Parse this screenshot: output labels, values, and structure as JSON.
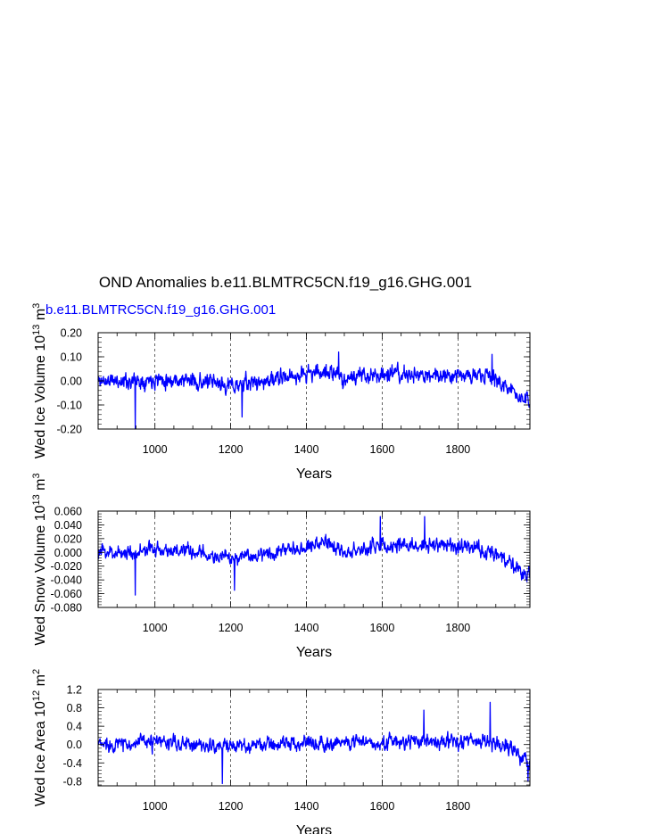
{
  "title": "OND Anomalies b.e11.BLMTRC5CN.f19_g16.GHG.001",
  "legend_label": "b.e11.BLMTRC5CN.f19_g16.GHG.001",
  "series_color": "#0000ff",
  "chart_data": [
    {
      "type": "line",
      "ylabel": "Wed Ice Volume 10^13 m^3",
      "xlabel": "Years",
      "xlim": [
        850,
        1990
      ],
      "ylim": [
        -0.2,
        0.2
      ],
      "xticks": [
        1000,
        1200,
        1400,
        1600,
        1800
      ],
      "xtick_labels": [
        "1000",
        "1200",
        "1400",
        "1600",
        "1800"
      ],
      "yticks": [
        -0.2,
        -0.1,
        0.0,
        0.1,
        0.2
      ],
      "ytick_labels": [
        "-0.20",
        "-0.10",
        "0.00",
        "0.10",
        "0.20"
      ],
      "amplitude": 0.045,
      "seed": 11,
      "profile": [
        [
          850,
          0.0
        ],
        [
          950,
          0.0
        ],
        [
          1000,
          0.01
        ],
        [
          1100,
          0.0
        ],
        [
          1200,
          -0.02
        ],
        [
          1300,
          0.0
        ],
        [
          1400,
          0.03
        ],
        [
          1450,
          0.04
        ],
        [
          1500,
          0.01
        ],
        [
          1600,
          0.03
        ],
        [
          1700,
          0.02
        ],
        [
          1800,
          0.03
        ],
        [
          1900,
          0.01
        ],
        [
          1930,
          -0.03
        ],
        [
          1990,
          -0.09
        ]
      ],
      "spikes": [
        [
          948,
          -0.2
        ],
        [
          1230,
          -0.15
        ],
        [
          1485,
          0.12
        ],
        [
          1890,
          0.11
        ]
      ],
      "series": [
        {
          "name": "b.e11.BLMTRC5CN.f19_g16.GHG.001",
          "color": "#0000ff"
        }
      ]
    },
    {
      "type": "line",
      "ylabel": "Wed Snow Volume 10^13 m^3",
      "xlabel": "Years",
      "xlim": [
        850,
        1990
      ],
      "ylim": [
        -0.08,
        0.06
      ],
      "xticks": [
        1000,
        1200,
        1400,
        1600,
        1800
      ],
      "xtick_labels": [
        "1000",
        "1200",
        "1400",
        "1600",
        "1800"
      ],
      "yticks": [
        -0.08,
        -0.06,
        -0.04,
        -0.02,
        0.0,
        0.02,
        0.04,
        0.06
      ],
      "ytick_labels": [
        "-0.080",
        "-0.060",
        "-0.040",
        "-0.020",
        "0.000",
        "0.020",
        "0.040",
        "0.060"
      ],
      "amplitude": 0.014,
      "seed": 23,
      "profile": [
        [
          850,
          0.0
        ],
        [
          950,
          0.0
        ],
        [
          1000,
          0.005
        ],
        [
          1100,
          0.0
        ],
        [
          1200,
          -0.01
        ],
        [
          1300,
          0.0
        ],
        [
          1400,
          0.01
        ],
        [
          1450,
          0.015
        ],
        [
          1500,
          0.0
        ],
        [
          1600,
          0.01
        ],
        [
          1700,
          0.01
        ],
        [
          1800,
          0.01
        ],
        [
          1900,
          0.0
        ],
        [
          1930,
          -0.015
        ],
        [
          1990,
          -0.035
        ]
      ],
      "spikes": [
        [
          948,
          -0.062
        ],
        [
          1210,
          -0.055
        ],
        [
          1595,
          0.052
        ],
        [
          1712,
          0.052
        ]
      ],
      "series": [
        {
          "name": "b.e11.BLMTRC5CN.f19_g16.GHG.001",
          "color": "#0000ff"
        }
      ]
    },
    {
      "type": "line",
      "ylabel": "Wed Ice Area 10^12 m^2",
      "xlabel": "Years",
      "xlim": [
        850,
        1990
      ],
      "ylim": [
        -0.9,
        1.2
      ],
      "xticks": [
        1000,
        1200,
        1400,
        1600,
        1800
      ],
      "xtick_labels": [
        "1000",
        "1200",
        "1400",
        "1600",
        "1800"
      ],
      "yticks": [
        -0.8,
        -0.4,
        0.0,
        0.4,
        0.8,
        1.2
      ],
      "ytick_labels": [
        "-0.8",
        "-0.4",
        "0.0",
        "0.4",
        "0.8",
        "1.2"
      ],
      "amplitude": 0.22,
      "seed": 37,
      "profile": [
        [
          850,
          0.0
        ],
        [
          1000,
          0.05
        ],
        [
          1200,
          -0.05
        ],
        [
          1400,
          0.05
        ],
        [
          1600,
          0.05
        ],
        [
          1800,
          0.08
        ],
        [
          1900,
          0.05
        ],
        [
          1940,
          -0.1
        ],
        [
          1990,
          -0.45
        ]
      ],
      "spikes": [
        [
          1178,
          -0.85
        ],
        [
          1710,
          0.75
        ],
        [
          1885,
          0.92
        ],
        [
          1985,
          -0.8
        ]
      ],
      "series": [
        {
          "name": "b.e11.BLMTRC5CN.f19_g16.GHG.001",
          "color": "#0000ff"
        }
      ]
    }
  ]
}
